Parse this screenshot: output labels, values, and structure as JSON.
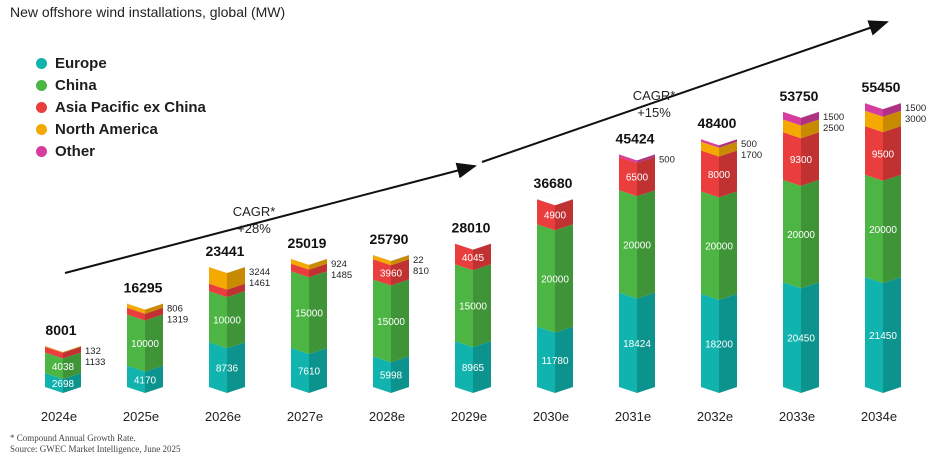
{
  "title": "New offshore wind installations, global (MW)",
  "legend": [
    {
      "name": "Europe",
      "color": "#10b3ad"
    },
    {
      "name": "China",
      "color": "#4cb543"
    },
    {
      "name": "Asia Pacific ex China",
      "color": "#ea3d3d"
    },
    {
      "name": "North America",
      "color": "#f4a800"
    },
    {
      "name": "Other",
      "color": "#d63c9e"
    }
  ],
  "cagr": [
    {
      "line1": "CAGR*",
      "line2": "+28%"
    },
    {
      "line1": "CAGR*",
      "line2": "+15%"
    }
  ],
  "footnote": {
    "line1": "* Compound Annual Growth Rate.",
    "line2": "Source: GWEC Market Intelligence, June 2025"
  },
  "chart_data": {
    "type": "bar",
    "stacked": true,
    "title": "New offshore wind installations, global (MW)",
    "categories": [
      "2024e",
      "2025e",
      "2026e",
      "2027e",
      "2028e",
      "2029e",
      "2030e",
      "2031e",
      "2032e",
      "2033e",
      "2034e"
    ],
    "totals": [
      8001,
      16295,
      23441,
      25019,
      25790,
      28010,
      36680,
      45424,
      48400,
      53750,
      55450
    ],
    "series": [
      {
        "name": "Europe",
        "values": [
          2698,
          4170,
          8736,
          7610,
          5998,
          8965,
          11780,
          18424,
          18200,
          20450,
          21450
        ]
      },
      {
        "name": "China",
        "values": [
          4038,
          10000,
          10000,
          15000,
          15000,
          15000,
          20000,
          20000,
          20000,
          20000,
          20000
        ]
      },
      {
        "name": "Asia Pacific ex China",
        "values": [
          1133,
          1319,
          1461,
          1485,
          3960,
          4045,
          4900,
          6500,
          8000,
          9300,
          9500
        ]
      },
      {
        "name": "North America",
        "values": [
          132,
          806,
          3244,
          924,
          810,
          0,
          0,
          0,
          1700,
          2500,
          3000
        ]
      },
      {
        "name": "Other",
        "values": [
          0,
          0,
          0,
          0,
          22,
          0,
          0,
          500,
          500,
          1500,
          1500
        ]
      }
    ],
    "inside_labels": {
      "Europe": true,
      "China": true,
      "Asia Pacific ex China": "when large"
    },
    "side_labels": [
      [
        "132",
        "1133"
      ],
      [
        "806",
        "1319"
      ],
      [
        "3244",
        "1461"
      ],
      [
        "924",
        "1485"
      ],
      [
        "22",
        "810"
      ],
      [],
      [],
      [
        "500"
      ],
      [
        "500",
        "1700"
      ],
      [
        "1500",
        "2500"
      ],
      [
        "1500",
        "3000"
      ]
    ],
    "ylim": [
      0,
      60000
    ],
    "xlabel": "",
    "ylabel": "MW"
  }
}
